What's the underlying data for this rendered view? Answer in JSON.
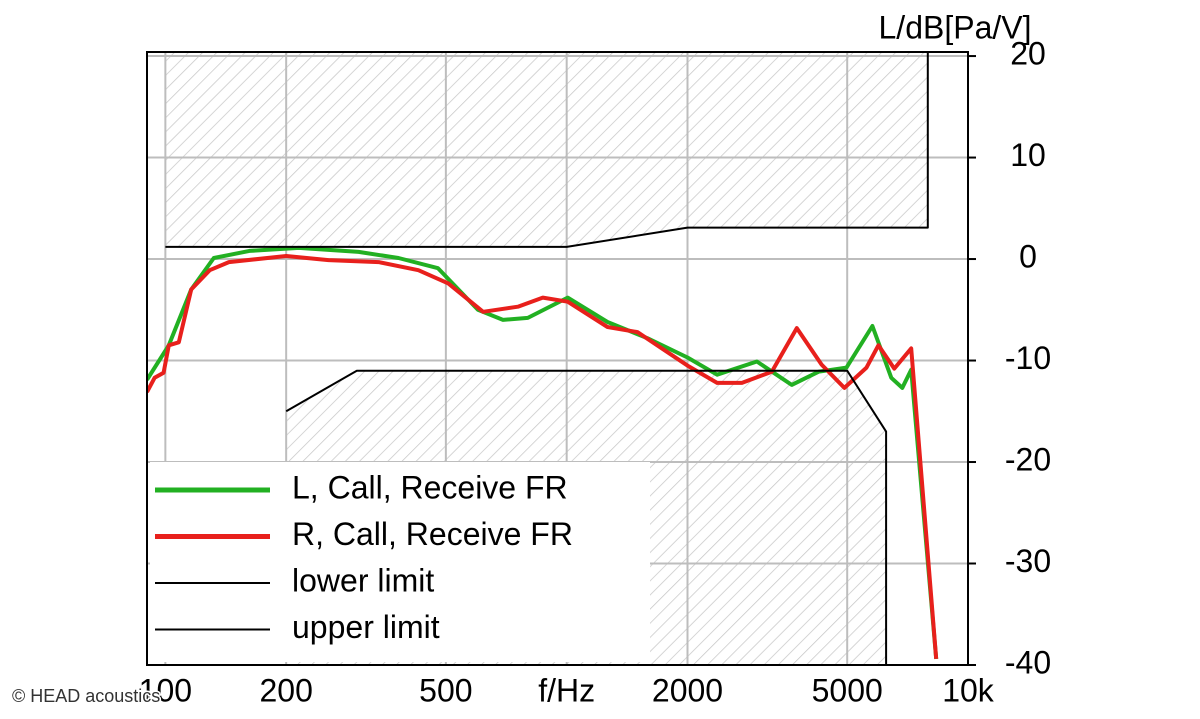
{
  "chart_data": {
    "type": "line",
    "y_label": "L/dB[Pa/V]",
    "watermark": "© HEAD acoustics",
    "xscale": "log",
    "xlim": [
      90,
      10000
    ],
    "ylim": [
      -40,
      20.4
    ],
    "grid": true,
    "legend": "lower left",
    "xticks": [
      100,
      200,
      500,
      {
        "value": 1000,
        "label": "f/Hz"
      },
      2000,
      5000,
      {
        "value": 10000,
        "label": "10k"
      }
    ],
    "yticks": [
      -40,
      -30,
      -20,
      -10,
      0,
      10,
      20
    ],
    "series": [
      {
        "name": "L, Call, Receive FR",
        "color": "#22b022",
        "x": [
          90,
          102,
          116,
          132,
          162,
          215,
          303,
          381,
          478,
          601,
          694,
          800,
          1006,
          1264,
          1589,
          2000,
          2370,
          2978,
          3637,
          4245,
          4980,
          5777,
          6440,
          6860,
          7220,
          8330
        ],
        "values": [
          -11.9,
          -8.5,
          -3.0,
          0.1,
          0.8,
          1.1,
          0.7,
          0.1,
          -0.9,
          -5.0,
          -6.0,
          -5.8,
          -3.8,
          -6.2,
          -7.8,
          -9.7,
          -11.4,
          -10.1,
          -12.4,
          -11.1,
          -10.7,
          -6.6,
          -11.7,
          -12.7,
          -10.9,
          -39.4
        ]
      },
      {
        "name": "R, Call, Receive FR",
        "color": "#e8201c",
        "x": [
          90,
          94,
          99,
          102,
          108,
          116,
          129,
          144,
          200,
          255,
          340,
          427,
          507,
          619,
          756,
          872,
          1006,
          1264,
          1500,
          2000,
          2370,
          2733,
          3245,
          3744,
          4317,
          4920,
          5585,
          5980,
          6550,
          7220,
          8330
        ],
        "values": [
          -13.1,
          -11.7,
          -11.2,
          -8.5,
          -8.2,
          -3.0,
          -1.1,
          -0.3,
          0.3,
          -0.1,
          -0.3,
          -1.1,
          -2.4,
          -5.2,
          -4.7,
          -3.8,
          -4.2,
          -6.7,
          -7.2,
          -10.5,
          -12.2,
          -12.2,
          -11.1,
          -6.8,
          -10.4,
          -12.7,
          -10.7,
          -8.5,
          -10.8,
          -8.8,
          -39.4
        ]
      },
      {
        "name": "lower limit",
        "color": "#000000",
        "limit": "lower",
        "x": [
          200,
          300,
          5000,
          6250,
          6250
        ],
        "values": [
          -15,
          -11,
          -11,
          -17,
          -40
        ]
      },
      {
        "name": "upper limit",
        "color": "#000000",
        "limit": "upper",
        "x": [
          100,
          1000,
          2000,
          7940,
          7940
        ],
        "values": [
          1.2,
          1.2,
          3.1,
          3.1,
          20.4
        ]
      }
    ]
  }
}
